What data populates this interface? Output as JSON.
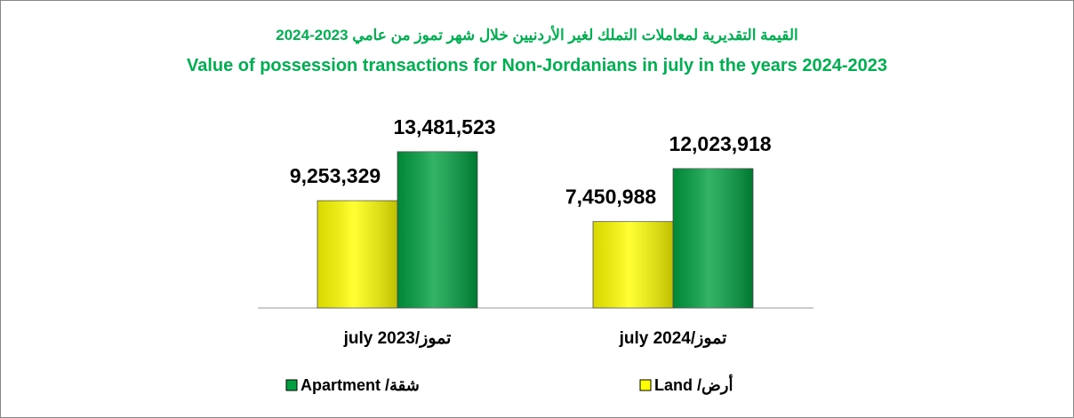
{
  "chart_data": {
    "type": "bar",
    "title": "القيمة التقديرية لمعاملات التملك لغير الأردنيين خلال شهر تموز من عامي 2023-2024",
    "subtitle": "Value of possession transactions for Non-Jordanians in july in the years 2024-2023",
    "categories": [
      "july 2023/تموز",
      "july 2024/تموز"
    ],
    "series": [
      {
        "name": "Land /أرض",
        "color": "#ffff00",
        "values": [
          9253329,
          7450988
        ],
        "value_labels": [
          "9,253,329",
          "7,450,988"
        ]
      },
      {
        "name": "Apartment /شقة",
        "color": "#00a040",
        "values": [
          13481523,
          12023918
        ],
        "value_labels": [
          "13,481,523",
          "12,023,918"
        ]
      }
    ],
    "ylim": [
      0,
      16000000
    ],
    "grid": false
  }
}
